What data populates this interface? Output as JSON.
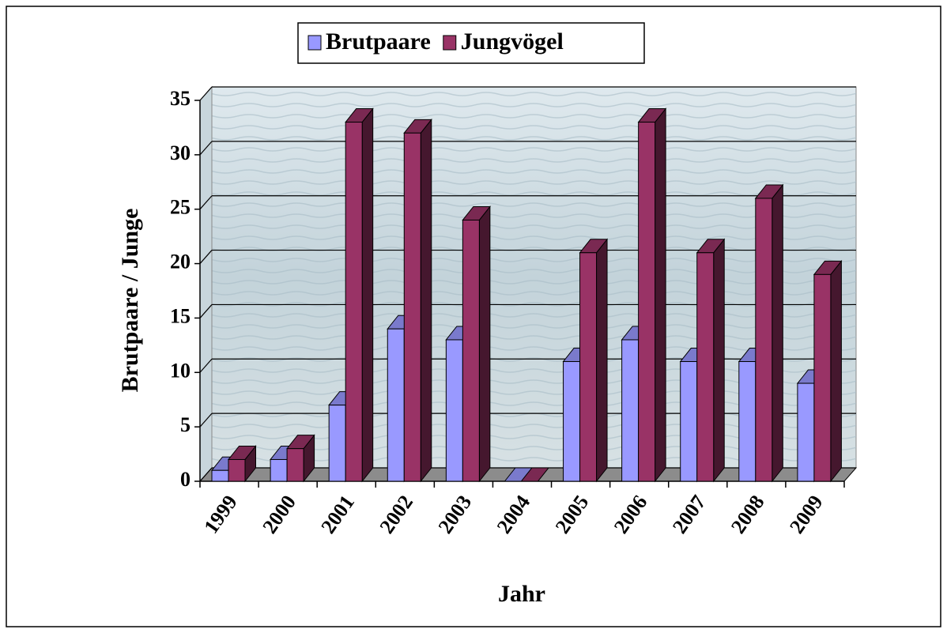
{
  "chart_data": {
    "type": "bar3d",
    "x_label": "Jahr",
    "y_label": "Brutpaare / Junge",
    "categories": [
      "1999",
      "2000",
      "2001",
      "2002",
      "2003",
      "2004",
      "2005",
      "2006",
      "2007",
      "2008",
      "2009"
    ],
    "series": [
      {
        "name": "Brutpaare",
        "color": "#9999ff",
        "values": [
          1,
          2,
          7,
          14,
          13,
          0,
          11,
          13,
          11,
          11,
          9
        ]
      },
      {
        "name": "Jungvögel",
        "color": "#993366",
        "values": [
          2,
          3,
          33,
          32,
          24,
          0,
          21,
          33,
          21,
          26,
          19
        ]
      }
    ],
    "ylim": [
      0,
      35
    ],
    "yticks": [
      0,
      5,
      10,
      15,
      20,
      25,
      30,
      35
    ],
    "grid": true,
    "legend": "top"
  }
}
